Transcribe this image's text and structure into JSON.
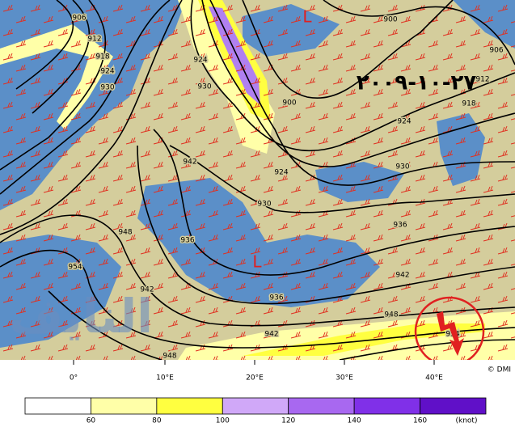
{
  "map": {
    "date_label": "٢٧-١٠-٢٠٠٩",
    "watermark": "النايف",
    "lows": [
      "L",
      "L"
    ],
    "contour_labels": [
      906,
      912,
      918,
      924,
      930,
      924,
      930,
      900,
      906,
      912,
      918,
      900,
      924,
      924,
      930,
      930,
      936,
      942,
      948,
      936,
      942,
      942,
      954,
      936,
      942,
      948,
      948,
      954
    ],
    "longitude_labels": [
      "0°",
      "10°E",
      "20°E",
      "30°E",
      "40°E"
    ],
    "credit": "© DMI"
  },
  "legend": {
    "thresholds": [
      60,
      80,
      100,
      120,
      140,
      160
    ],
    "unit": "(knot)",
    "colors": [
      "#ffffff",
      "#ffffa8",
      "#ffff40",
      "#d0a8f8",
      "#a868f0",
      "#8030e8",
      "#6010c8"
    ]
  }
}
